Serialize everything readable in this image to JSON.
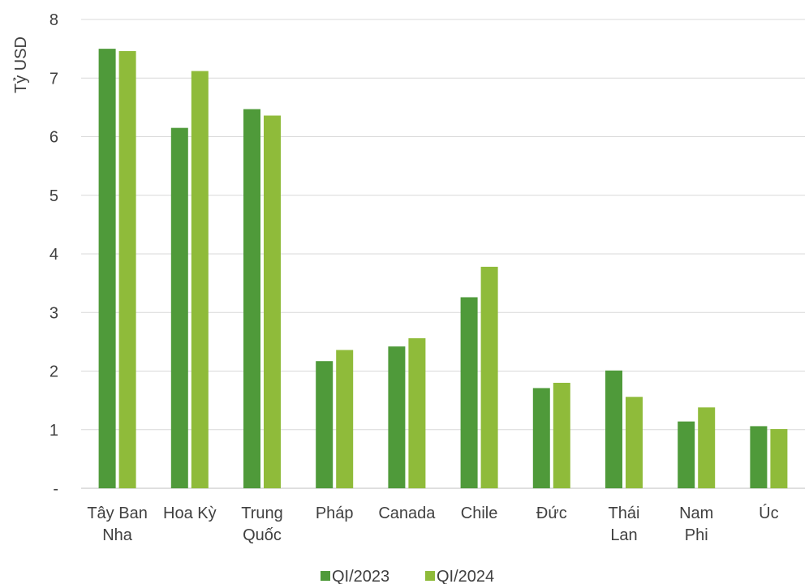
{
  "chart_data": {
    "type": "bar",
    "title": "",
    "xlabel": "",
    "ylabel": "Tỷ USD",
    "ylim": [
      0,
      8
    ],
    "yticks": [
      {
        "value": 0,
        "label": "-"
      },
      {
        "value": 1,
        "label": "1"
      },
      {
        "value": 2,
        "label": "2"
      },
      {
        "value": 3,
        "label": "3"
      },
      {
        "value": 4,
        "label": "4"
      },
      {
        "value": 5,
        "label": "5"
      },
      {
        "value": 6,
        "label": "6"
      },
      {
        "value": 7,
        "label": "7"
      },
      {
        "value": 8,
        "label": "8"
      }
    ],
    "grid": true,
    "legend_position": "bottom",
    "categories": [
      [
        "Tây Ban",
        "Nha"
      ],
      [
        "Hoa Kỳ"
      ],
      [
        "Trung",
        "Quốc"
      ],
      [
        "Pháp"
      ],
      [
        "Canada"
      ],
      [
        "Chile"
      ],
      [
        "Đức"
      ],
      [
        "Thái",
        "Lan"
      ],
      [
        "Nam",
        "Phi"
      ],
      [
        "Úc"
      ]
    ],
    "series": [
      {
        "name": "QI/2023",
        "color": "#4f9a3a",
        "values": [
          7.5,
          6.15,
          6.47,
          2.17,
          2.42,
          3.26,
          1.71,
          2.01,
          1.14,
          1.06
        ]
      },
      {
        "name": "QI/2024",
        "color": "#8fbb3a",
        "values": [
          7.46,
          7.12,
          6.36,
          2.36,
          2.56,
          3.78,
          1.8,
          1.56,
          1.38,
          1.01
        ]
      }
    ]
  }
}
